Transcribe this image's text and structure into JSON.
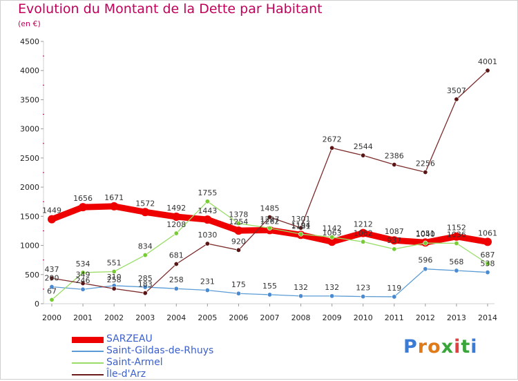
{
  "header": {
    "title": "Evolution du Montant de la Dette par Habitant",
    "unit": "(en €)"
  },
  "logo": {
    "text": "Proxiti",
    "colors": [
      "#3a7bd5",
      "#e07b1a",
      "#e07b1a",
      "#3aa53a",
      "#e04040",
      "#3aa53a",
      "#3a7bd5"
    ]
  },
  "chart_data": {
    "type": "line",
    "title": "Evolution du Montant de la Dette par Habitant",
    "ylabel": "(en €)",
    "x": [
      2000,
      2001,
      2002,
      2003,
      2004,
      2005,
      2006,
      2007,
      2008,
      2009,
      2010,
      2011,
      2012,
      2013,
      2014
    ],
    "ylim": [
      0,
      4500
    ],
    "yticks": [
      0,
      500,
      1000,
      1500,
      2000,
      2500,
      3000,
      3500,
      4000,
      4500
    ],
    "grid": false,
    "legend": "bottom-left",
    "series": [
      {
        "name": "SARZEAU",
        "color": "#ee0000",
        "values": [
          1449,
          1656,
          1671,
          1572,
          1492,
          1443,
          1254,
          1262,
          1181,
          1063,
          1212,
          1087,
          1051,
          1152,
          1061
        ]
      },
      {
        "name": "Saint-Gildas-de-Rhuys",
        "color": "#5b9bd5",
        "values": [
          290,
          246,
          310,
          285,
          258,
          231,
          175,
          155,
          132,
          132,
          123,
          119,
          596,
          568,
          538
        ]
      },
      {
        "name": "Saint-Armel",
        "color": "#99dd66",
        "values": [
          67,
          534,
          551,
          834,
          1208,
          1755,
          1378,
          1297,
          1194,
          1142,
          1062,
          937,
          1040,
          1036,
          687
        ]
      },
      {
        "name": "Île-d'Arz",
        "color": "#6b1a1a",
        "values": [
          437,
          349,
          258,
          183,
          681,
          1030,
          920,
          1485,
          1301,
          2672,
          2544,
          2386,
          2256,
          3507,
          4001
        ]
      }
    ]
  }
}
